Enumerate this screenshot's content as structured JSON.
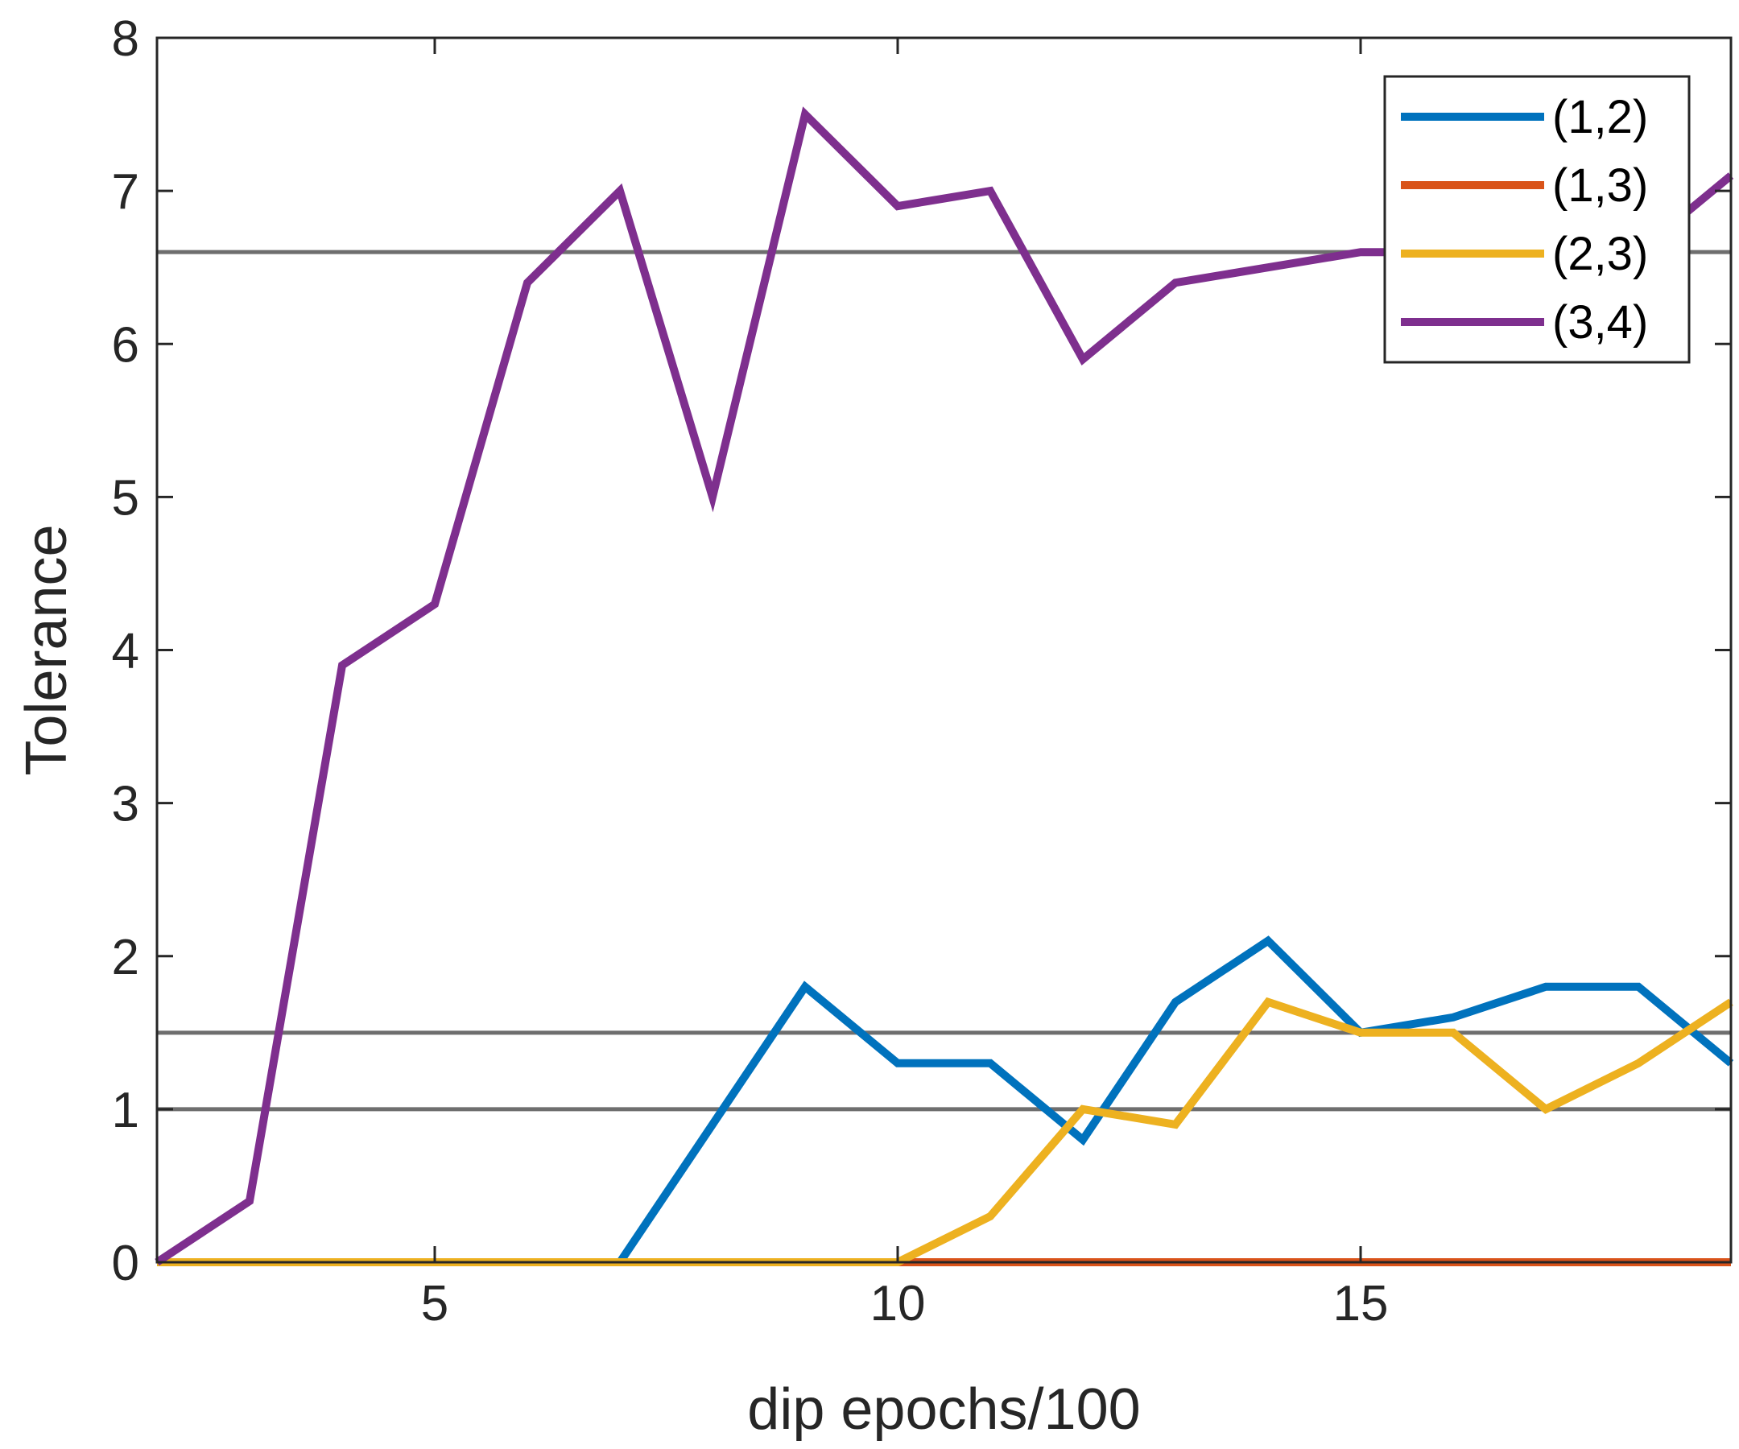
{
  "chart_data": {
    "type": "line",
    "title": "",
    "xlabel": "dip epochs/100",
    "ylabel": "Tolerance",
    "xlim": [
      2,
      19
    ],
    "ylim": [
      0,
      8
    ],
    "xticks": [
      5,
      10,
      15
    ],
    "yticks": [
      0,
      1,
      2,
      3,
      4,
      5,
      6,
      7,
      8
    ],
    "grid": false,
    "legend_position": "top-right",
    "x": [
      2,
      3,
      4,
      5,
      6,
      7,
      8,
      9,
      10,
      11,
      12,
      13,
      14,
      15,
      16,
      17,
      18,
      19
    ],
    "series": [
      {
        "name": "(1,2)",
        "color": "#0072BD",
        "values": [
          0,
          0,
          0,
          0,
          0,
          0,
          0.9,
          1.8,
          1.3,
          1.3,
          0.8,
          1.7,
          2.1,
          1.5,
          1.6,
          1.8,
          1.8,
          1.3
        ]
      },
      {
        "name": "(1,3)",
        "color": "#D95319",
        "values": [
          0,
          0,
          0,
          0,
          0,
          0,
          0,
          0,
          0,
          0,
          0,
          0,
          0,
          0,
          0,
          0,
          0,
          0
        ]
      },
      {
        "name": "(2,3)",
        "color": "#EDB120",
        "values": [
          0,
          0,
          0,
          0,
          0,
          0,
          0,
          0,
          0,
          0.3,
          1.0,
          0.9,
          1.7,
          1.5,
          1.5,
          1.0,
          1.3,
          1.7
        ]
      },
      {
        "name": "(3,4)",
        "color": "#7E2F8E",
        "values": [
          0,
          0.4,
          3.9,
          4.3,
          6.4,
          7.0,
          5.0,
          7.5,
          6.9,
          7.0,
          5.9,
          6.4,
          6.5,
          6.6,
          6.6,
          6.6,
          6.6,
          7.1
        ]
      }
    ],
    "reference_lines": {
      "color": "#6E6E6E",
      "y": [
        6.6,
        1.5,
        1.0
      ]
    }
  }
}
